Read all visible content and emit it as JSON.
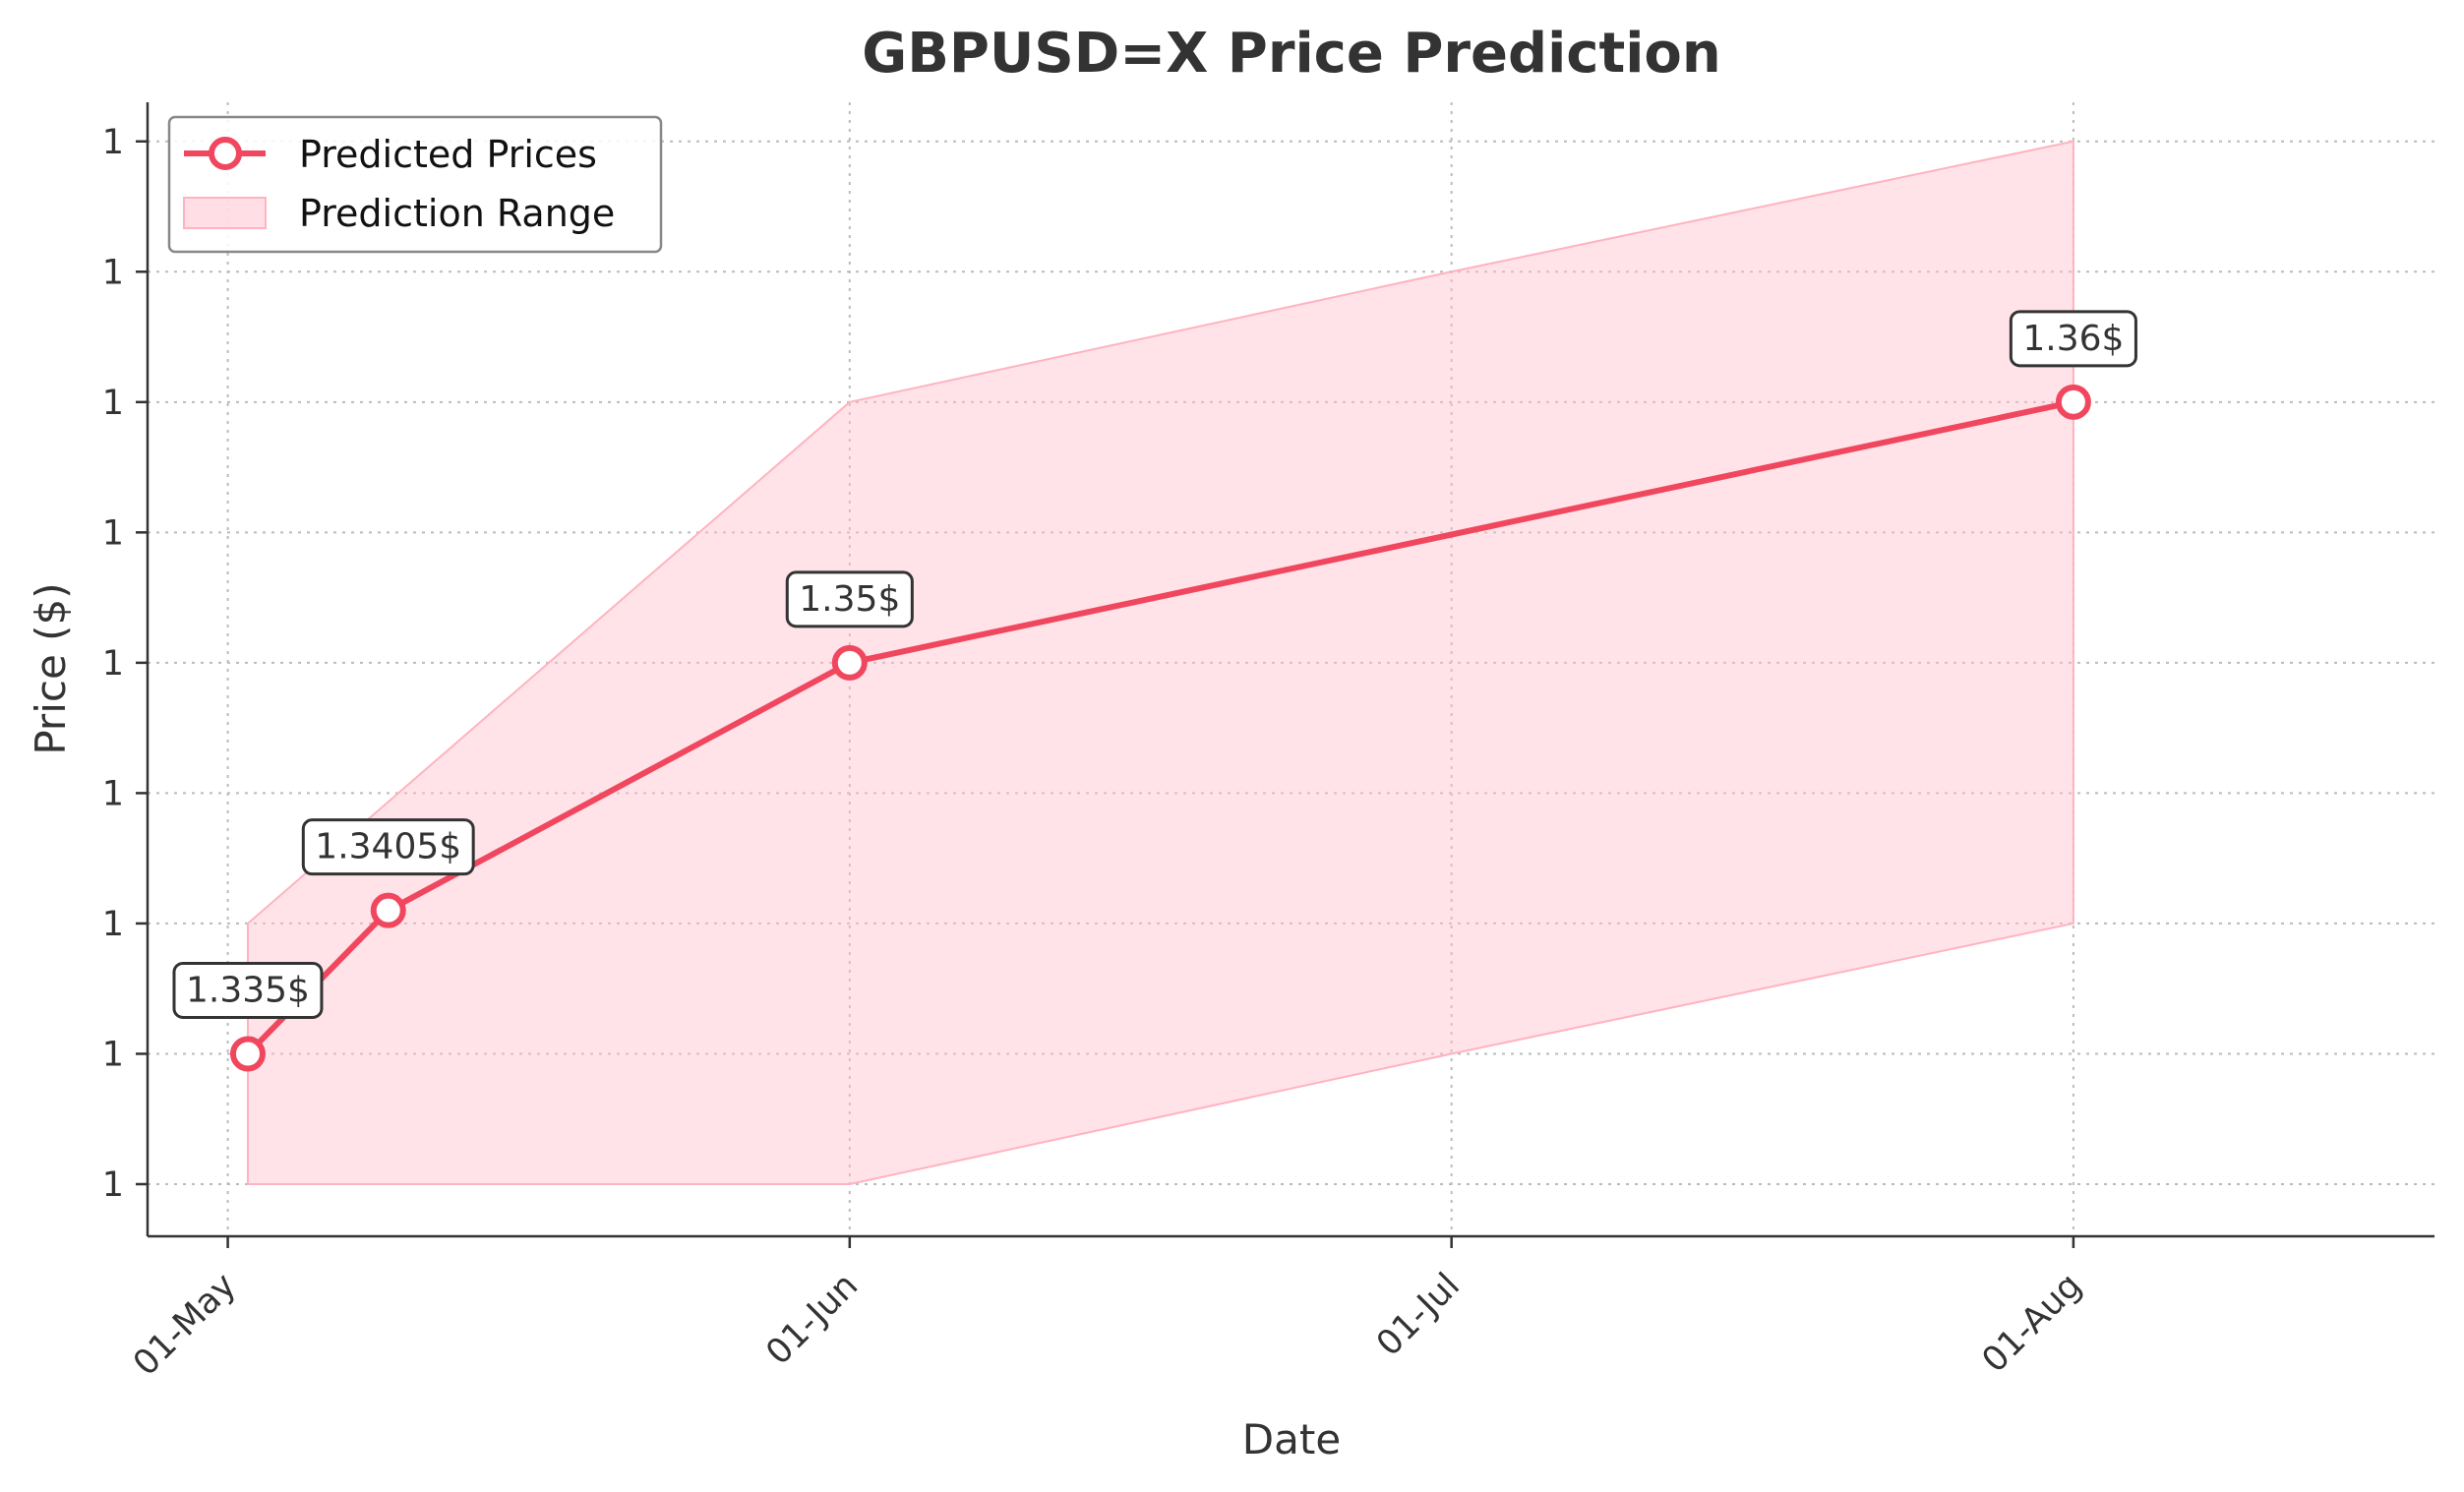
{
  "chart_data": {
    "type": "line",
    "title": "GBPUSD=X Price Prediction",
    "xlabel": "Date",
    "ylabel": "Price ($)",
    "x_ticks": [
      {
        "date": "2025-05-01",
        "label": "01-May"
      },
      {
        "date": "2025-06-01",
        "label": "01-Jun"
      },
      {
        "date": "2025-07-01",
        "label": "01-Jul"
      },
      {
        "date": "2025-08-01",
        "label": "01-Aug"
      }
    ],
    "xlim": [
      "2025-04-27",
      "2025-08-19"
    ],
    "y_ticks": [
      {
        "value": 1.33,
        "label": "1"
      },
      {
        "value": 1.335,
        "label": "1"
      },
      {
        "value": 1.34,
        "label": "1"
      },
      {
        "value": 1.345,
        "label": "1"
      },
      {
        "value": 1.35,
        "label": "1"
      },
      {
        "value": 1.355,
        "label": "1"
      },
      {
        "value": 1.36,
        "label": "1"
      },
      {
        "value": 1.365,
        "label": "1"
      },
      {
        "value": 1.37,
        "label": "1"
      }
    ],
    "ylim": [
      1.328,
      1.3715
    ],
    "grid": true,
    "legend_position": "top-left",
    "series": [
      {
        "name": "Predicted Prices",
        "color": "#f0475f",
        "points": [
          {
            "x": "2025-05-02",
            "y": 1.335,
            "label": "1.335$"
          },
          {
            "x": "2025-05-09",
            "y": 1.3405,
            "label": "1.3405$"
          },
          {
            "x": "2025-06-01",
            "y": 1.35,
            "label": "1.35$"
          },
          {
            "x": "2025-08-01",
            "y": 1.36,
            "label": "1.36$"
          }
        ]
      }
    ],
    "range": {
      "name": "Prediction Range",
      "color": "#ffc0cb",
      "points": [
        {
          "x": "2025-05-02",
          "low": 1.33,
          "high": 1.34
        },
        {
          "x": "2025-06-01",
          "low": 1.33,
          "high": 1.36
        },
        {
          "x": "2025-07-01",
          "low": 1.335,
          "high": 1.365
        },
        {
          "x": "2025-08-01",
          "low": 1.34,
          "high": 1.37
        }
      ]
    }
  }
}
